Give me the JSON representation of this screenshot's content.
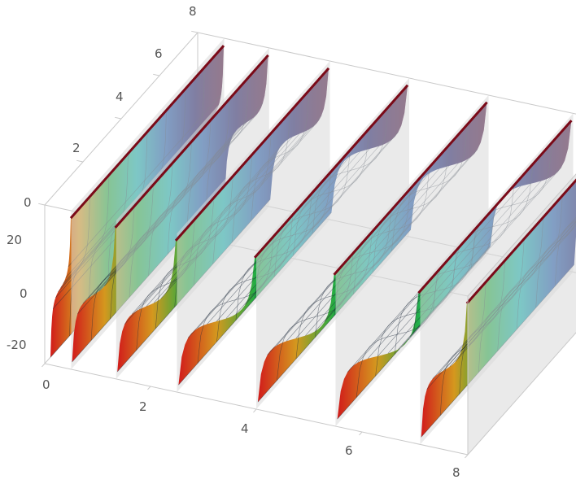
{
  "chart_data": {
    "type": "surface3d",
    "title": "",
    "x_axis": {
      "label": "",
      "range": [
        0,
        8
      ],
      "ticks": [
        "0",
        "2",
        "4",
        "6",
        "8"
      ]
    },
    "y_axis": {
      "label": "",
      "range": [
        0,
        8
      ],
      "ticks": [
        "0",
        "2",
        "4",
        "6",
        "8"
      ]
    },
    "z_axis": {
      "label": "",
      "range": [
        -25,
        25
      ],
      "ticks": [
        "20",
        "0",
        "-20"
      ]
    },
    "branch_x_ranges": [
      [
        0.1,
        0.5
      ],
      [
        0.5,
        1.35
      ],
      [
        1.35,
        2.5
      ],
      [
        2.5,
        4.0
      ],
      [
        4.0,
        5.5
      ],
      [
        5.5,
        7.1
      ],
      [
        7.1,
        8.0
      ]
    ],
    "surface": "tan-like periodic branches separated by vertical asymptotes",
    "colormap": [
      "#d11a1a",
      "#e0a020",
      "#28c04a",
      "#12d3cf",
      "#1f6fd6",
      "#1b1a8a",
      "#6a0e5c"
    ],
    "mesh_lines": true,
    "box": true,
    "grid": false,
    "legend": "none"
  }
}
